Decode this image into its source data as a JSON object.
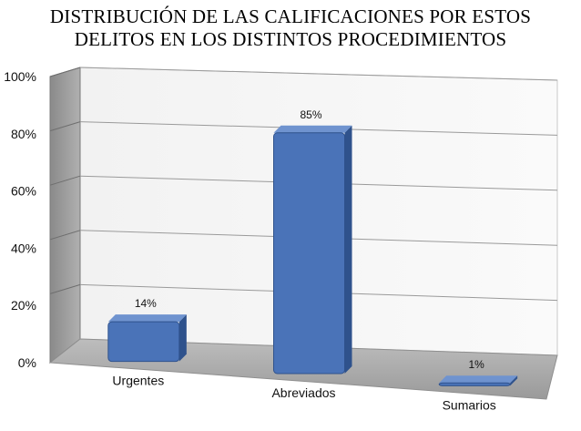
{
  "title_line1": "DISTRIBUCIÓN DE LAS CALIFICACIONES POR ESTOS",
  "title_line2": "DELITOS EN LOS DISTINTOS PROCEDIMIENTOS",
  "chart_data": {
    "type": "bar",
    "title": "DISTRIBUCIÓN DE LAS CALIFICACIONES POR ESTOS DELITOS EN LOS DISTINTOS PROCEDIMIENTOS",
    "categories": [
      "Urgentes",
      "Abreviados",
      "Sumarios"
    ],
    "values": [
      14,
      85,
      1
    ],
    "data_labels": [
      "14%",
      "85%",
      "1%"
    ],
    "y_ticks": [
      "0%",
      "20%",
      "40%",
      "60%",
      "80%",
      "100%"
    ],
    "ylim": [
      0,
      100
    ],
    "xlabel": "",
    "ylabel": "",
    "grid": true,
    "legend": false,
    "style": "3d",
    "colors": {
      "bar": "#4a73b8",
      "bar_dark": "#2f528c",
      "bar_light": "#6f93cf"
    }
  }
}
